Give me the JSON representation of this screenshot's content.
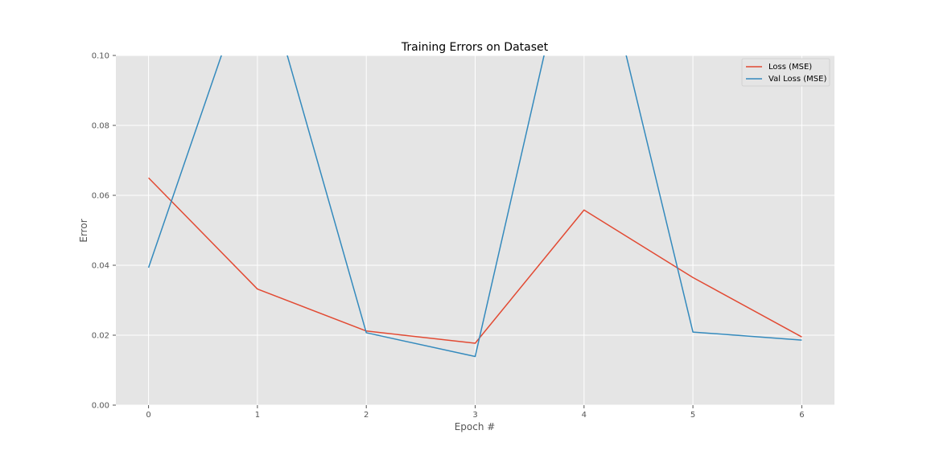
{
  "chart_data": {
    "type": "line",
    "title": "Training Errors on Dataset",
    "xlabel": "Epoch #",
    "ylabel": "Error",
    "x": [
      0,
      1,
      2,
      3,
      4,
      5,
      6
    ],
    "xlim": [
      -0.3,
      6.3
    ],
    "ylim": [
      0.0,
      0.1
    ],
    "xticks": [
      "0",
      "1",
      "2",
      "3",
      "4",
      "5",
      "6"
    ],
    "yticks": [
      "0.00",
      "0.02",
      "0.04",
      "0.06",
      "0.08",
      "0.10"
    ],
    "grid": true,
    "legend_position": "top-right",
    "series": [
      {
        "name": "Loss (MSE)",
        "color": "#E24A33",
        "values": [
          0.065,
          0.0332,
          0.0212,
          0.0177,
          0.0558,
          0.0365,
          0.0195
        ]
      },
      {
        "name": "Val Loss (MSE)",
        "color": "#348ABD",
        "values": [
          0.0393,
          0.13,
          0.0207,
          0.0139,
          0.15,
          0.0209,
          0.0186
        ]
      }
    ]
  }
}
